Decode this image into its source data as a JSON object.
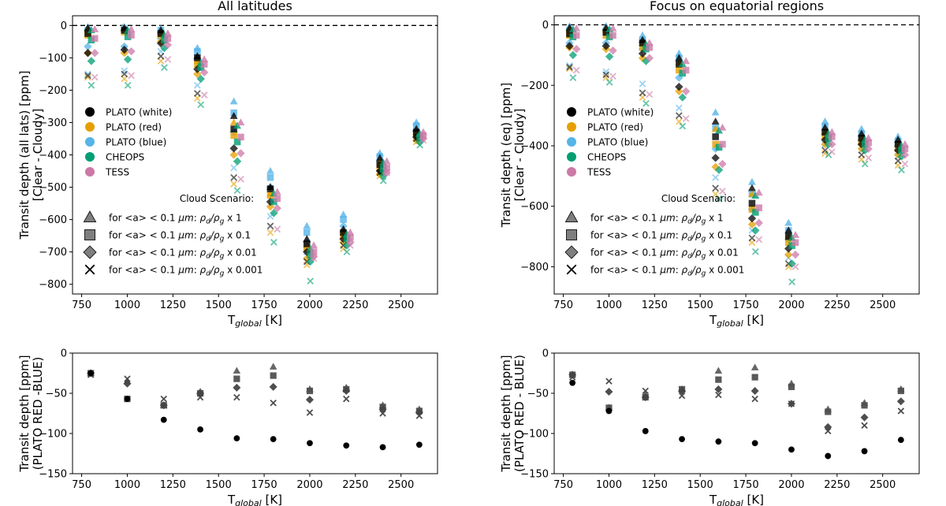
{
  "figure": {
    "common_xlabel": "T<sub>global</sub> [K]",
    "legend_colors_entries": [
      {
        "name": "PLATO (white)",
        "color": "#000000"
      },
      {
        "name": "PLATO (red)",
        "color": "#e69f00"
      },
      {
        "name": "PLATO (blue)",
        "color": "#56b4e9"
      },
      {
        "name": "CHEOPS",
        "color": "#009e73"
      },
      {
        "name": "TESS",
        "color": "#cc79a7"
      }
    ],
    "legend_title": "Cloud Scenario:",
    "legend_marker_entries": [
      {
        "marker": "triangle",
        "label": "for <a> < 0.1 μm: ρd/ρg x 1"
      },
      {
        "marker": "square",
        "label": "for <a> < 0.1 μm: ρd/ρg x 0.1"
      },
      {
        "marker": "diamond",
        "label": "for <a> < 0.1 μm: ρd/ρg x 0.01"
      },
      {
        "marker": "x",
        "label": "for <a> < 0.1 μm: ρd/ρg x 0.001"
      }
    ]
  },
  "chart_data": [
    {
      "id": "top-left",
      "type": "scatter",
      "title": "All latitudes",
      "xlabel": "T_global [K]",
      "ylabel_line1": "Transit depth (all lats) [ppm]",
      "ylabel_line2": "[Clear - Cloudy]",
      "xlim": [
        700,
        2700
      ],
      "ylim": [
        -830,
        30
      ],
      "xticks": [
        750,
        1000,
        1250,
        1500,
        1750,
        2000,
        2250,
        2500
      ],
      "yticks": [
        0,
        -100,
        -200,
        -300,
        -400,
        -500,
        -600,
        -700,
        -800
      ],
      "reference_line": 0,
      "temperatures": [
        800,
        1000,
        1200,
        1400,
        1600,
        1800,
        2000,
        2200,
        2400,
        2600
      ],
      "scenarios": [
        "triangle",
        "square",
        "diamond",
        "x"
      ],
      "series": [
        {
          "name": "PLATO (white)",
          "values": {
            "triangle": [
              -8,
              -8,
              -15,
              -95,
              -280,
              -500,
              -660,
              -630,
              -410,
              -320
            ],
            "square": [
              -25,
              -15,
              -25,
              -100,
              -320,
              -505,
              -675,
              -640,
              -430,
              -330
            ],
            "diamond": [
              -85,
              -75,
              -55,
              -135,
              -380,
              -545,
              -700,
              -660,
              -450,
              -345
            ],
            "x": [
              -155,
              -150,
              -95,
              -210,
              -470,
              -620,
              -730,
              -680,
              -455,
              -350
            ]
          }
        },
        {
          "name": "PLATO (red)",
          "values": {
            "triangle": [
              -10,
              -10,
              -20,
              -110,
              -300,
              -520,
              -680,
              -640,
              -420,
              -330
            ],
            "square": [
              -30,
              -20,
              -30,
              -120,
              -340,
              -525,
              -690,
              -650,
              -440,
              -340
            ],
            "diamond": [
              -85,
              -85,
              -50,
              -150,
              -400,
              -560,
              -720,
              -670,
              -460,
              -355
            ],
            "x": [
              -160,
              -165,
              -110,
              -225,
              -490,
              -640,
              -740,
              -690,
              -465,
              -360
            ]
          }
        },
        {
          "name": "PLATO (blue)",
          "values": {
            "triangle": [
              -5,
              -5,
              -10,
              -70,
              -235,
              -450,
              -620,
              -585,
              -395,
              -300
            ],
            "square": [
              -15,
              -10,
              -15,
              -80,
              -270,
              -470,
              -640,
              -600,
              -405,
              -310
            ],
            "diamond": [
              -65,
              -65,
              -40,
              -105,
              -330,
              -500,
              -670,
              -620,
              -420,
              -325
            ],
            "x": [
              -150,
              -140,
              -80,
              -185,
              -440,
              -590,
              -700,
              -640,
              -430,
              -335
            ]
          }
        },
        {
          "name": "CHEOPS",
          "values": {
            "triangle": [
              -15,
              -15,
              -30,
              -115,
              -310,
              -520,
              -690,
              -645,
              -425,
              -335
            ],
            "square": [
              -45,
              -35,
              -45,
              -130,
              -360,
              -545,
              -710,
              -660,
              -445,
              -345
            ],
            "diamond": [
              -110,
              -105,
              -70,
              -165,
              -420,
              -580,
              -730,
              -680,
              -465,
              -360
            ],
            "x": [
              -185,
              -185,
              -130,
              -245,
              -510,
              -670,
              -790,
              -700,
              -480,
              -370
            ]
          }
        },
        {
          "name": "TESS",
          "values": {
            "triangle": [
              -12,
              -12,
              -25,
              -105,
              -300,
              -515,
              -680,
              -640,
              -420,
              -330
            ],
            "square": [
              -40,
              -30,
              -40,
              -120,
              -345,
              -535,
              -700,
              -655,
              -440,
              -340
            ],
            "diamond": [
              -85,
              -80,
              -60,
              -145,
              -395,
              -565,
              -715,
              -670,
              -455,
              -350
            ],
            "x": [
              -160,
              -155,
              -105,
              -215,
              -475,
              -630,
              -720,
              -680,
              -455,
              -355
            ]
          }
        }
      ]
    },
    {
      "id": "top-right",
      "type": "scatter",
      "title": "Focus on equatorial regions",
      "xlabel": "T_global [K]",
      "ylabel_line1": "Transit depth (eq) [ppm]",
      "ylabel_line2": "[Clear - Cloudy]",
      "xlim": [
        700,
        2700
      ],
      "ylim": [
        -890,
        30
      ],
      "xticks": [
        750,
        1000,
        1250,
        1500,
        1750,
        2000,
        2250,
        2500
      ],
      "yticks": [
        0,
        -200,
        -400,
        -600,
        -800
      ],
      "reference_line": 0,
      "temperatures": [
        800,
        1000,
        1200,
        1400,
        1600,
        1800,
        2000,
        2200,
        2400,
        2600
      ],
      "scenarios": [
        "triangle",
        "square",
        "diamond",
        "x"
      ],
      "series": [
        {
          "name": "PLATO (white)",
          "values": {
            "triangle": [
              -10,
              -10,
              -50,
              -110,
              -320,
              -540,
              -680,
              -340,
              -360,
              -380
            ],
            "square": [
              -30,
              -25,
              -60,
              -130,
              -370,
              -590,
              -700,
              -355,
              -375,
              -395
            ],
            "diamond": [
              -70,
              -70,
              -95,
              -205,
              -440,
              -640,
              -740,
              -380,
              -395,
              -415
            ],
            "x": [
              -140,
              -165,
              -225,
              -300,
              -540,
              -705,
              -790,
              -415,
              -430,
              -450
            ]
          }
        },
        {
          "name": "PLATO (red)",
          "values": {
            "triangle": [
              -15,
              -15,
              -60,
              -125,
              -345,
              -560,
              -700,
              -355,
              -375,
              -395
            ],
            "square": [
              -35,
              -35,
              -75,
              -150,
              -395,
              -610,
              -720,
              -370,
              -390,
              -410
            ],
            "diamond": [
              -75,
              -80,
              -110,
              -220,
              -470,
              -660,
              -760,
              -395,
              -410,
              -430
            ],
            "x": [
              -145,
              -175,
              -240,
              -320,
              -560,
              -720,
              -800,
              -425,
              -445,
              -465
            ]
          }
        },
        {
          "name": "PLATO (blue)",
          "values": {
            "triangle": [
              -5,
              -5,
              -35,
              -95,
              -290,
              -520,
              -655,
              -320,
              -345,
              -370
            ],
            "square": [
              -20,
              -20,
              -50,
              -110,
              -340,
              -560,
              -680,
              -335,
              -360,
              -385
            ],
            "diamond": [
              -60,
              -60,
              -80,
              -175,
              -410,
              -610,
              -710,
              -360,
              -380,
              -400
            ],
            "x": [
              -135,
              -155,
              -195,
              -275,
              -505,
              -680,
              -770,
              -395,
              -415,
              -435
            ]
          }
        },
        {
          "name": "CHEOPS",
          "values": {
            "triangle": [
              -15,
              -15,
              -65,
              -130,
              -350,
              -565,
              -705,
              -360,
              -380,
              -400
            ],
            "square": [
              -40,
              -40,
              -80,
              -160,
              -405,
              -620,
              -730,
              -375,
              -395,
              -415
            ],
            "diamond": [
              -100,
              -105,
              -120,
              -240,
              -480,
              -680,
              -790,
              -395,
              -415,
              -435
            ],
            "x": [
              -175,
              -190,
              -260,
              -335,
              -575,
              -750,
              -850,
              -430,
              -460,
              -480
            ]
          }
        },
        {
          "name": "TESS",
          "values": {
            "triangle": [
              -12,
              -12,
              -60,
              -120,
              -340,
              -555,
              -695,
              -355,
              -375,
              -395
            ],
            "square": [
              -35,
              -35,
              -75,
              -150,
              -395,
              -605,
              -720,
              -370,
              -390,
              -410
            ],
            "diamond": [
              -80,
              -85,
              -110,
              -220,
              -460,
              -655,
              -760,
              -395,
              -410,
              -430
            ],
            "x": [
              -150,
              -170,
              -230,
              -310,
              -550,
              -710,
              -800,
              -420,
              -440,
              -460
            ]
          }
        }
      ]
    },
    {
      "id": "bottom-left",
      "type": "scatter",
      "xlabel": "T_global [K]",
      "ylabel_line1": "Transit depth [ppm]",
      "ylabel_line2": "(PLATO RED -BLUE)",
      "xlim": [
        700,
        2700
      ],
      "ylim": [
        -150,
        0
      ],
      "xticks": [
        750,
        1000,
        1250,
        1500,
        1750,
        2000,
        2250,
        2500
      ],
      "yticks": [
        -150,
        -100,
        -50,
        0
      ],
      "x": [
        800,
        1000,
        1200,
        1400,
        1600,
        1800,
        2000,
        2200,
        2400,
        2600
      ],
      "series": [
        {
          "marker": "triangle",
          "values": [
            -25,
            -35,
            -65,
            -48,
            -22,
            -17,
            -45,
            -43,
            -65,
            -70
          ]
        },
        {
          "marker": "square",
          "values": [
            -25,
            -57,
            -65,
            -50,
            -32,
            -28,
            -47,
            -45,
            -67,
            -72
          ]
        },
        {
          "marker": "diamond",
          "values": [
            -25,
            -38,
            -65,
            -50,
            -43,
            -42,
            -58,
            -47,
            -70,
            -74
          ]
        },
        {
          "marker": "x",
          "values": [
            -27,
            -32,
            -57,
            -55,
            -55,
            -62,
            -74,
            -57,
            -75,
            -78
          ]
        },
        {
          "marker": "circle",
          "values": [
            -25,
            -57,
            -83,
            -95,
            -106,
            -107,
            -112,
            -115,
            -117,
            -114
          ]
        }
      ]
    },
    {
      "id": "bottom-right",
      "type": "scatter",
      "xlabel": "T_global [K]",
      "ylabel_line1": "Transit depth [ppm]",
      "ylabel_line2": "(PLATO RED - BLUE)",
      "xlim": [
        700,
        2700
      ],
      "ylim": [
        -150,
        0
      ],
      "xticks": [
        750,
        1000,
        1250,
        1500,
        1750,
        2000,
        2250,
        2500
      ],
      "yticks": [
        -150,
        -100,
        -50,
        0
      ],
      "x": [
        800,
        1000,
        1200,
        1400,
        1600,
        1800,
        2000,
        2200,
        2400,
        2600
      ],
      "series": [
        {
          "marker": "triangle",
          "values": [
            -27,
            -68,
            -52,
            -45,
            -22,
            -18,
            -38,
            -70,
            -62,
            -45
          ]
        },
        {
          "marker": "square",
          "values": [
            -27,
            -68,
            -55,
            -45,
            -33,
            -30,
            -42,
            -73,
            -65,
            -47
          ]
        },
        {
          "marker": "diamond",
          "values": [
            -27,
            -48,
            -55,
            -47,
            -45,
            -47,
            -63,
            -92,
            -80,
            -60
          ]
        },
        {
          "marker": "x",
          "values": [
            -30,
            -35,
            -47,
            -53,
            -52,
            -57,
            -63,
            -97,
            -90,
            -72
          ]
        },
        {
          "marker": "circle",
          "values": [
            -37,
            -72,
            -97,
            -107,
            -110,
            -112,
            -120,
            -128,
            -122,
            -108
          ]
        }
      ]
    }
  ]
}
